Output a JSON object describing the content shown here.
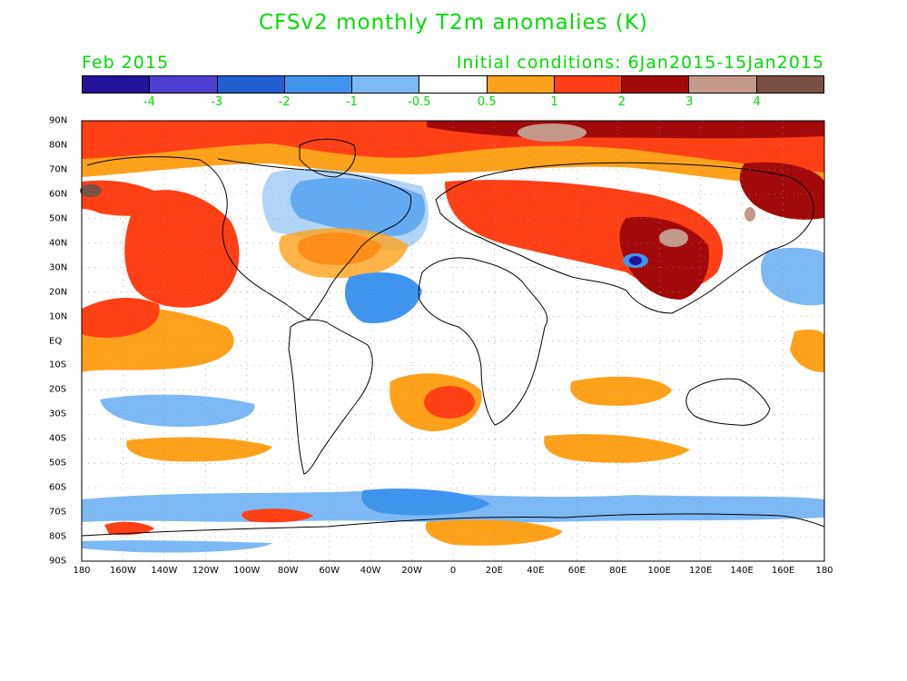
{
  "title": "CFSv2 monthly T2m anomalies (K)",
  "month": "Feb 2015",
  "init": "Initial conditions: 6Jan2015-15Jan2015",
  "colorbar": {
    "colors": [
      "#22119a",
      "#4e3fd2",
      "#1f5fd0",
      "#3f95ee",
      "#7db9f4",
      "#ffffff",
      "#ffa11a",
      "#ff3f14",
      "#a20a0a",
      "#c4988a",
      "#7b5044"
    ],
    "labels": [
      "-4",
      "-3",
      "-2",
      "-1",
      "-0.5",
      "0.5",
      "1",
      "2",
      "3",
      "4"
    ]
  },
  "yticks": [
    "90N",
    "80N",
    "70N",
    "60N",
    "50N",
    "40N",
    "30N",
    "20N",
    "10N",
    "EQ",
    "10S",
    "20S",
    "30S",
    "40S",
    "50S",
    "60S",
    "70S",
    "80S",
    "90S"
  ],
  "xticks": [
    "180",
    "160W",
    "140W",
    "120W",
    "100W",
    "80W",
    "60W",
    "40W",
    "20W",
    "0",
    "20E",
    "40E",
    "60E",
    "80E",
    "100E",
    "120E",
    "140E",
    "160E",
    "180"
  ]
}
